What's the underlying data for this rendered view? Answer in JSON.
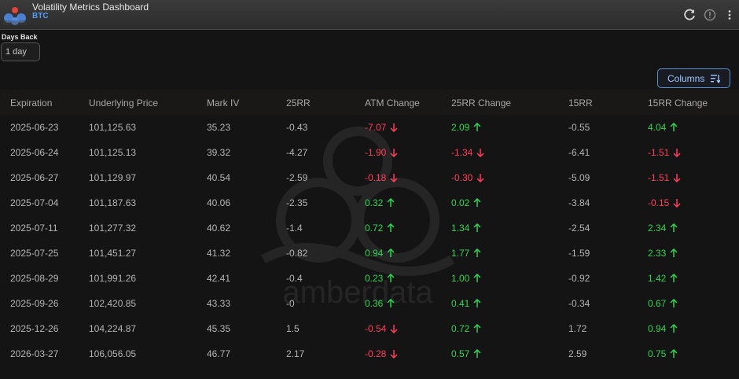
{
  "app": {
    "title": "Volatility Metrics Dashboard",
    "subtitle": "BTC"
  },
  "controls": {
    "days_back_label": "Days Back",
    "days_back_value": "1 day",
    "columns_label": "Columns"
  },
  "watermark": {
    "text": "amberdata"
  },
  "colors": {
    "up": "#2fd454",
    "down": "#ff3d5a",
    "accent": "#4f9cff"
  },
  "table": {
    "columns": [
      "Expiration",
      "Underlying Price",
      "Mark IV",
      "25RR",
      "ATM Change",
      "25RR Change",
      "15RR",
      "15RR Change"
    ],
    "rows": [
      {
        "expiration": "2025-06-23",
        "underlying_price": "101,125.63",
        "mark_iv": "35.23",
        "rr25": "-0.43",
        "atm_change": "-7.07",
        "atm_dir": "down",
        "rr25_change": "2.09",
        "rr25_dir": "up",
        "rr15": "-0.55",
        "rr15_change": "4.04",
        "rr15_dir": "up"
      },
      {
        "expiration": "2025-06-24",
        "underlying_price": "101,125.13",
        "mark_iv": "39.32",
        "rr25": "-4.27",
        "atm_change": "-1.90",
        "atm_dir": "down",
        "rr25_change": "-1.34",
        "rr25_dir": "down",
        "rr15": "-6.41",
        "rr15_change": "-1.51",
        "rr15_dir": "down"
      },
      {
        "expiration": "2025-06-27",
        "underlying_price": "101,129.97",
        "mark_iv": "40.54",
        "rr25": "-2.59",
        "atm_change": "-0.18",
        "atm_dir": "down",
        "rr25_change": "-0.30",
        "rr25_dir": "down",
        "rr15": "-5.09",
        "rr15_change": "-1.51",
        "rr15_dir": "down"
      },
      {
        "expiration": "2025-07-04",
        "underlying_price": "101,187.63",
        "mark_iv": "40.06",
        "rr25": "-2.35",
        "atm_change": "0.32",
        "atm_dir": "up",
        "rr25_change": "0.02",
        "rr25_dir": "up",
        "rr15": "-3.84",
        "rr15_change": "-0.15",
        "rr15_dir": "down"
      },
      {
        "expiration": "2025-07-11",
        "underlying_price": "101,277.32",
        "mark_iv": "40.62",
        "rr25": "-1.4",
        "atm_change": "0.72",
        "atm_dir": "up",
        "rr25_change": "1.34",
        "rr25_dir": "up",
        "rr15": "-2.54",
        "rr15_change": "2.34",
        "rr15_dir": "up"
      },
      {
        "expiration": "2025-07-25",
        "underlying_price": "101,451.27",
        "mark_iv": "41.32",
        "rr25": "-0.82",
        "atm_change": "0.94",
        "atm_dir": "up",
        "rr25_change": "1.77",
        "rr25_dir": "up",
        "rr15": "-1.59",
        "rr15_change": "2.33",
        "rr15_dir": "up"
      },
      {
        "expiration": "2025-08-29",
        "underlying_price": "101,991.26",
        "mark_iv": "42.41",
        "rr25": "-0.4",
        "atm_change": "0.23",
        "atm_dir": "up",
        "rr25_change": "1.00",
        "rr25_dir": "up",
        "rr15": "-0.92",
        "rr15_change": "1.42",
        "rr15_dir": "up"
      },
      {
        "expiration": "2025-09-26",
        "underlying_price": "102,420.85",
        "mark_iv": "43.33",
        "rr25": "-0",
        "atm_change": "0.36",
        "atm_dir": "up",
        "rr25_change": "0.41",
        "rr25_dir": "up",
        "rr15": "-0.34",
        "rr15_change": "0.67",
        "rr15_dir": "up"
      },
      {
        "expiration": "2025-12-26",
        "underlying_price": "104,224.87",
        "mark_iv": "45.35",
        "rr25": "1.5",
        "atm_change": "-0.54",
        "atm_dir": "down",
        "rr25_change": "0.72",
        "rr25_dir": "up",
        "rr15": "1.72",
        "rr15_change": "0.94",
        "rr15_dir": "up"
      },
      {
        "expiration": "2026-03-27",
        "underlying_price": "106,056.05",
        "mark_iv": "46.77",
        "rr25": "2.17",
        "atm_change": "-0.28",
        "atm_dir": "down",
        "rr25_change": "0.57",
        "rr25_dir": "up",
        "rr15": "2.59",
        "rr15_change": "0.75",
        "rr15_dir": "up"
      }
    ]
  }
}
